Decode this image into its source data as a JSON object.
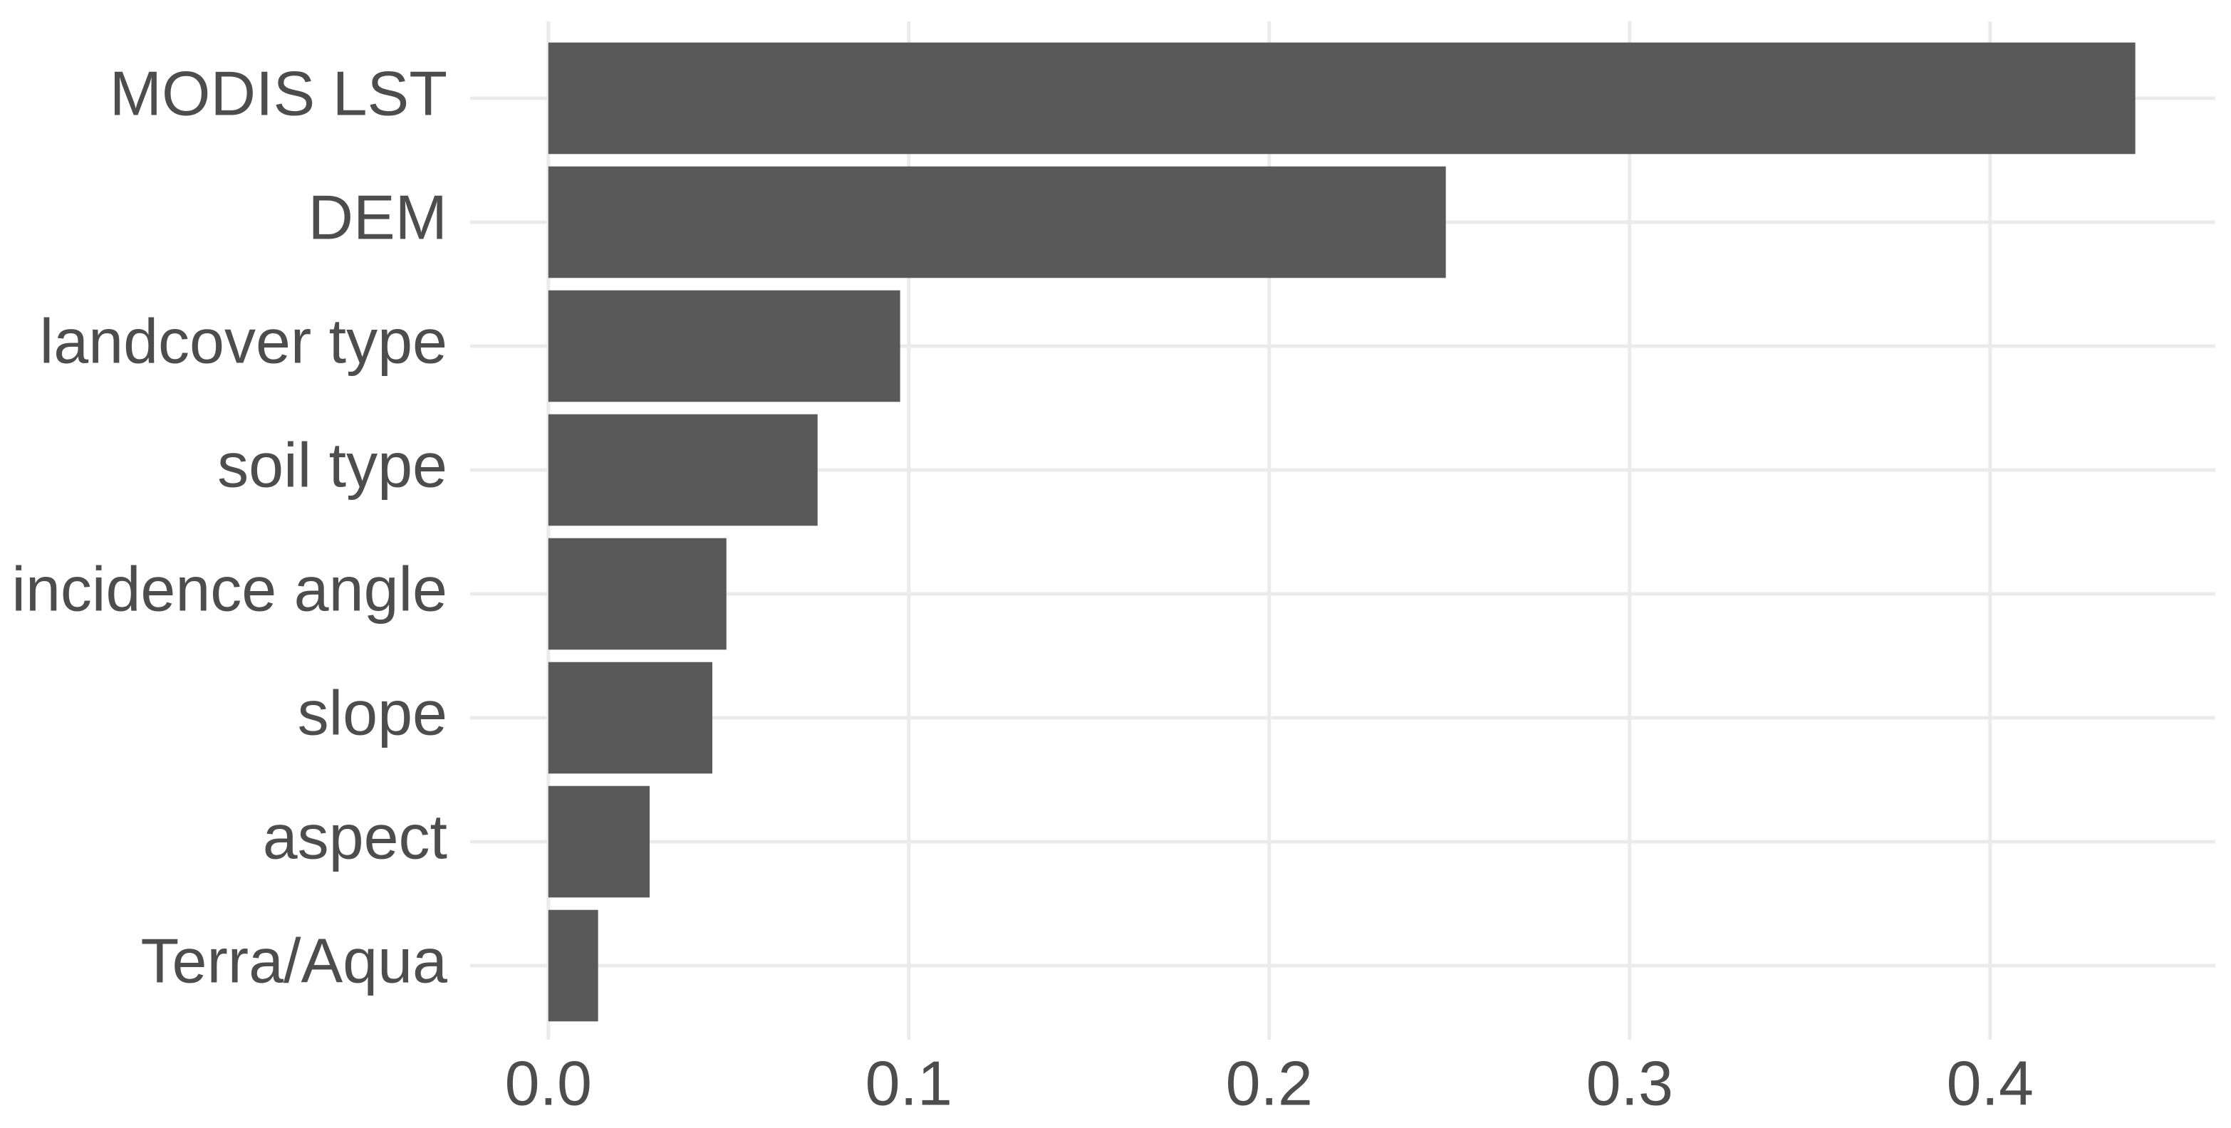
{
  "chart_data": {
    "type": "bar",
    "orientation": "horizontal",
    "categories": [
      "MODIS LST",
      "DEM",
      "landcover type",
      "soil type",
      "incidence angle",
      "slope",
      "aspect",
      "Terra/Aqua"
    ],
    "values": [
      0.4403,
      0.249,
      0.0976,
      0.0747,
      0.0494,
      0.0455,
      0.0281,
      0.0138
    ],
    "color": "#595959",
    "xlim": [
      -0.0217,
      0.4625
    ],
    "xticks": [
      {
        "value": 0,
        "label": "0.0"
      },
      0.1,
      0.2,
      0.3,
      0.4
    ],
    "grid": true
  }
}
